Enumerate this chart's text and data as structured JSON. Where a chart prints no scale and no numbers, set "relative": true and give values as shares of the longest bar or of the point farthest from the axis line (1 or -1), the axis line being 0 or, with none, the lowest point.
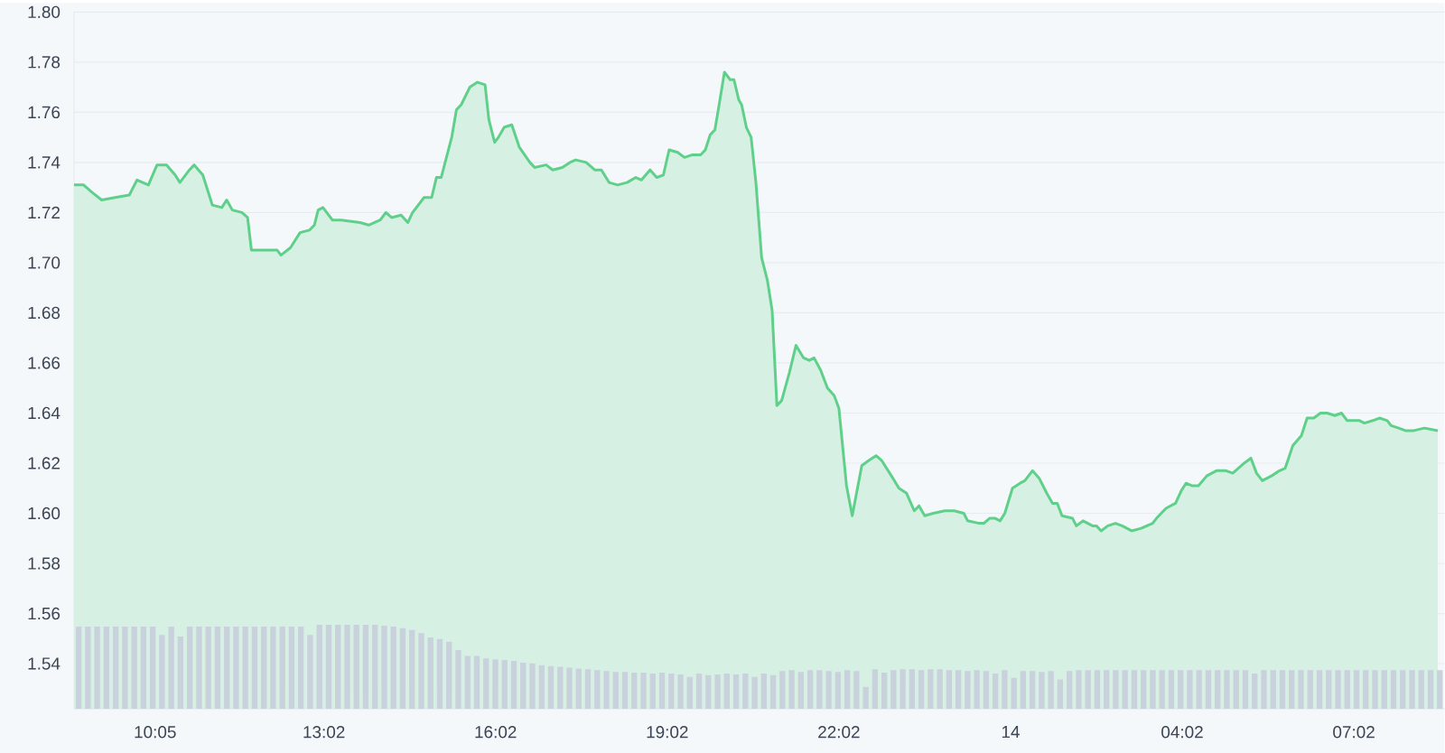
{
  "chart_data": [
    {
      "type": "area",
      "color": "#5fd08a",
      "grid": "y",
      "x": [
        "--01-13T08:40",
        "--01-13T08:50",
        "--01-13T08:59",
        "--01-13T09:09",
        "--01-13T09:23",
        "--01-13T09:38",
        "--01-13T09:46",
        "--01-13T09:58",
        "--01-13T10:07",
        "--01-13T10:17",
        "--01-13T10:26",
        "--01-13T10:31",
        "--01-13T10:41",
        "--01-13T10:46",
        "--01-13T10:55",
        "--01-13T11:05",
        "--01-13T11:15",
        "--01-13T11:20",
        "--01-13T11:26",
        "--01-13T11:36",
        "--01-13T11:42",
        "--01-13T11:46",
        "--01-13T11:58",
        "--01-13T12:13",
        "--01-13T12:17",
        "--01-13T12:27",
        "--01-13T12:37",
        "--01-13T12:47",
        "--01-13T12:52",
        "--01-13T12:56",
        "--01-13T13:01",
        "--01-13T13:11",
        "--01-13T13:20",
        "--01-13T13:40",
        "--01-13T13:49",
        "--01-13T14:01",
        "--01-13T14:07",
        "--01-13T14:13",
        "--01-13T14:23",
        "--01-13T14:30",
        "--01-13T14:35",
        "--01-13T14:47",
        "--01-13T14:55",
        "--01-13T15:00",
        "--01-13T15:05",
        "--01-13T15:16",
        "--01-13T15:21",
        "--01-13T15:26",
        "--01-13T15:35",
        "--01-13T15:43",
        "--01-13T15:51",
        "--01-13T15:55",
        "--01-13T16:01",
        "--01-13T16:05",
        "--01-13T16:11",
        "--01-13T16:19",
        "--01-13T16:27",
        "--01-13T16:38",
        "--01-13T16:43",
        "--01-13T16:55",
        "--01-13T17:02",
        "--01-13T17:12",
        "--01-13T17:20",
        "--01-13T17:26",
        "--01-13T17:37",
        "--01-13T17:46",
        "--01-13T17:53",
        "--01-13T18:01",
        "--01-13T18:10",
        "--01-13T18:20",
        "--01-13T18:29",
        "--01-13T18:35",
        "--01-13T18:44",
        "--01-13T18:51",
        "--01-13T18:58",
        "--01-13T19:04",
        "--01-13T19:13",
        "--01-13T19:20",
        "--01-13T19:28",
        "--01-13T19:37",
        "--01-13T19:42",
        "--01-13T19:47",
        "--01-13T19:52",
        "--01-13T19:56",
        "--01-13T20:02",
        "--01-13T20:08",
        "--01-13T20:12",
        "--01-13T20:17",
        "--01-13T20:20",
        "--01-13T20:25",
        "--01-13T20:30",
        "--01-13T20:35",
        "--01-13T20:41",
        "--01-13T20:47",
        "--01-13T20:52",
        "--01-13T20:57",
        "--01-13T21:02",
        "--01-13T21:10",
        "--01-13T21:17",
        "--01-13T21:25",
        "--01-13T21:31",
        "--01-13T21:36",
        "--01-13T21:43",
        "--01-13T21:50",
        "--01-13T21:57",
        "--01-13T22:02",
        "--01-13T22:10",
        "--01-13T22:16",
        "--01-13T22:26",
        "--01-13T22:33",
        "--01-13T22:41",
        "--01-13T22:47",
        "--01-13T22:57",
        "--01-13T23:05",
        "--01-13T23:13",
        "--01-13T23:21",
        "--01-13T23:26",
        "--01-13T23:32",
        "--01-13T23:41",
        "--01-13T23:53",
        "--01-14T00:03",
        "--01-14T00:13",
        "--01-14T00:17",
        "--01-14T00:29",
        "--01-14T00:34",
        "--01-14T00:40",
        "--01-14T00:46",
        "--01-14T00:51",
        "--01-14T00:56",
        "--01-14T01:04",
        "--01-14T01:12",
        "--01-14T01:17",
        "--01-14T01:25",
        "--01-14T01:32",
        "--01-14T01:40",
        "--01-14T01:46",
        "--01-14T01:51",
        "--01-14T01:56",
        "--01-14T02:07",
        "--01-14T02:11",
        "--01-14T02:18",
        "--01-14T02:28",
        "--01-14T02:32",
        "--01-14T02:37",
        "--01-14T02:44",
        "--01-14T02:52",
        "--01-14T02:59",
        "--01-14T03:09",
        "--01-14T03:19",
        "--01-14T03:31",
        "--01-14T03:35",
        "--01-14T03:45",
        "--01-14T03:55",
        "--01-14T04:01",
        "--01-14T04:06",
        "--01-14T04:12",
        "--01-14T04:19",
        "--01-14T04:28",
        "--01-14T04:38",
        "--01-14T04:48",
        "--01-14T04:55",
        "--01-14T05:07",
        "--01-14T05:14",
        "--01-14T05:20",
        "--01-14T05:26",
        "--01-14T05:36",
        "--01-14T05:44",
        "--01-14T05:50",
        "--01-14T05:58",
        "--01-14T06:07",
        "--01-14T06:13",
        "--01-14T06:20",
        "--01-14T06:27",
        "--01-14T06:34",
        "--01-14T06:42",
        "--01-14T06:49",
        "--01-14T06:55",
        "--01-14T07:01",
        "--01-14T07:08",
        "--01-14T07:13",
        "--01-14T07:22",
        "--01-14T07:29",
        "--01-14T07:37",
        "--01-14T07:41",
        "--01-14T07:49",
        "--01-14T07:56",
        "--01-14T08:05",
        "--01-14T08:16",
        "--01-14T08:30"
      ],
      "values": [
        1.731,
        1.731,
        1.728,
        1.725,
        1.726,
        1.727,
        1.733,
        1.731,
        1.739,
        1.739,
        1.735,
        1.732,
        1.737,
        1.739,
        1.735,
        1.723,
        1.722,
        1.725,
        1.721,
        1.72,
        1.718,
        1.705,
        1.705,
        1.705,
        1.703,
        1.706,
        1.712,
        1.713,
        1.715,
        1.721,
        1.722,
        1.717,
        1.717,
        1.716,
        1.715,
        1.717,
        1.72,
        1.718,
        1.719,
        1.716,
        1.72,
        1.726,
        1.726,
        1.734,
        1.734,
        1.75,
        1.761,
        1.763,
        1.77,
        1.772,
        1.771,
        1.757,
        1.748,
        1.75,
        1.754,
        1.755,
        1.746,
        1.74,
        1.738,
        1.739,
        1.737,
        1.738,
        1.74,
        1.741,
        1.74,
        1.737,
        1.737,
        1.732,
        1.731,
        1.732,
        1.734,
        1.733,
        1.737,
        1.734,
        1.735,
        1.745,
        1.744,
        1.742,
        1.743,
        1.743,
        1.745,
        1.751,
        1.753,
        1.762,
        1.776,
        1.773,
        1.773,
        1.765,
        1.763,
        1.754,
        1.75,
        1.732,
        1.702,
        1.693,
        1.681,
        1.643,
        1.645,
        1.656,
        1.667,
        1.662,
        1.661,
        1.662,
        1.657,
        1.65,
        1.647,
        1.642,
        1.611,
        1.599,
        1.619,
        1.621,
        1.623,
        1.621,
        1.615,
        1.61,
        1.608,
        1.601,
        1.603,
        1.599,
        1.6,
        1.601,
        1.601,
        1.6,
        1.597,
        1.596,
        1.596,
        1.598,
        1.598,
        1.597,
        1.6,
        1.61,
        1.612,
        1.613,
        1.617,
        1.614,
        1.608,
        1.604,
        1.604,
        1.599,
        1.598,
        1.595,
        1.597,
        1.595,
        1.595,
        1.593,
        1.595,
        1.596,
        1.595,
        1.593,
        1.594,
        1.596,
        1.598,
        1.602,
        1.604,
        1.609,
        1.612,
        1.611,
        1.611,
        1.615,
        1.617,
        1.617,
        1.616,
        1.62,
        1.622,
        1.616,
        1.613,
        1.615,
        1.617,
        1.618,
        1.627,
        1.631,
        1.638,
        1.638,
        1.64,
        1.64,
        1.639,
        1.64,
        1.637,
        1.637,
        1.637,
        1.636,
        1.637,
        1.638,
        1.637,
        1.635,
        1.634,
        1.633,
        1.633,
        1.634,
        1.633
      ],
      "xlim": [
        "--01-13T08:40",
        "--01-14T08:37"
      ],
      "ylim": [
        1.522,
        1.8
      ],
      "xticks": [
        {
          "value": "--01-13T10:05",
          "label": "10:05"
        },
        {
          "value": "--01-13T13:02",
          "label": "13:02"
        },
        {
          "value": "--01-13T16:02",
          "label": "16:02"
        },
        {
          "value": "--01-13T19:02",
          "label": "19:02"
        },
        {
          "value": "--01-13T22:02",
          "label": "22:02"
        },
        {
          "value": "--01-14T01:02",
          "label": "14"
        },
        {
          "value": "--01-14T04:02",
          "label": "04:02"
        },
        {
          "value": "--01-14T07:02",
          "label": "07:02"
        }
      ],
      "yticks": [
        1.54,
        1.56,
        1.58,
        {
          "value": 1.6,
          "label": "1.60"
        },
        1.62,
        1.64,
        1.66,
        1.68,
        {
          "value": 1.7,
          "label": "1.70"
        },
        1.72,
        1.74,
        1.76,
        1.78,
        {
          "value": 1.8,
          "label": "1.80"
        }
      ]
    },
    {
      "type": "bar",
      "relative": true,
      "color": "#c9d1dc",
      "categories": [
        null,
        null,
        null,
        null,
        null,
        null,
        null,
        null,
        null,
        null,
        null,
        null,
        null,
        null,
        null,
        null,
        null,
        null,
        null,
        null,
        null,
        null,
        null,
        null,
        null,
        null,
        null,
        null,
        null,
        null,
        null,
        null,
        null,
        null,
        null,
        null,
        null,
        null,
        null,
        null,
        null,
        null,
        null,
        null,
        null,
        null,
        null,
        null,
        null,
        null,
        null,
        null,
        null,
        null,
        null,
        null,
        null,
        null,
        null,
        null,
        null,
        null,
        null,
        null,
        null,
        null,
        null,
        null,
        null,
        null,
        null,
        null,
        null,
        null,
        null,
        null,
        null,
        null,
        null,
        null,
        null,
        null,
        null,
        null,
        null,
        null,
        null,
        null,
        null,
        null,
        null,
        null,
        null,
        null,
        null,
        null,
        null,
        null,
        null,
        null,
        null,
        null,
        null,
        null,
        null,
        null,
        null,
        null,
        null,
        null,
        null,
        null,
        null,
        null,
        null,
        null,
        null,
        null,
        null,
        null,
        null,
        null,
        null,
        null,
        null,
        null,
        null,
        null,
        null,
        null,
        null,
        null,
        null,
        null,
        null,
        null,
        null,
        null,
        null,
        null,
        null,
        null,
        null,
        null,
        null,
        null,
        null,
        null
      ],
      "values": [
        0.98,
        0.98,
        0.98,
        0.98,
        0.98,
        0.98,
        0.98,
        0.98,
        0.98,
        0.88,
        0.98,
        0.86,
        0.98,
        0.98,
        0.98,
        0.98,
        0.98,
        0.98,
        0.98,
        0.98,
        0.98,
        0.98,
        0.98,
        0.98,
        0.98,
        0.88,
        1.0,
        1.0,
        1.0,
        1.0,
        1.0,
        1.0,
        1.0,
        0.99,
        0.98,
        0.96,
        0.94,
        0.9,
        0.85,
        0.83,
        0.8,
        0.7,
        0.63,
        0.63,
        0.6,
        0.59,
        0.58,
        0.57,
        0.55,
        0.54,
        0.52,
        0.51,
        0.5,
        0.49,
        0.48,
        0.47,
        0.46,
        0.45,
        0.44,
        0.44,
        0.43,
        0.43,
        0.42,
        0.43,
        0.42,
        0.41,
        0.38,
        0.42,
        0.4,
        0.41,
        0.42,
        0.41,
        0.42,
        0.38,
        0.42,
        0.4,
        0.45,
        0.46,
        0.44,
        0.46,
        0.46,
        0.45,
        0.44,
        0.46,
        0.45,
        0.26,
        0.47,
        0.43,
        0.46,
        0.47,
        0.47,
        0.46,
        0.47,
        0.47,
        0.46,
        0.46,
        0.45,
        0.46,
        0.45,
        0.42,
        0.46,
        0.37,
        0.45,
        0.45,
        0.44,
        0.45,
        0.35,
        0.45,
        0.46,
        0.46,
        0.46,
        0.46,
        0.46,
        0.46,
        0.46,
        0.46,
        0.46,
        0.46,
        0.46,
        0.46,
        0.46,
        0.46,
        0.46,
        0.46,
        0.46,
        0.46,
        0.46,
        0.42,
        0.46,
        0.46,
        0.46,
        0.46,
        0.46,
        0.46,
        0.46,
        0.46,
        0.46,
        0.46,
        0.46,
        0.46,
        0.46,
        0.46,
        0.46,
        0.46,
        0.46,
        0.46,
        0.46,
        0.46
      ]
    }
  ]
}
